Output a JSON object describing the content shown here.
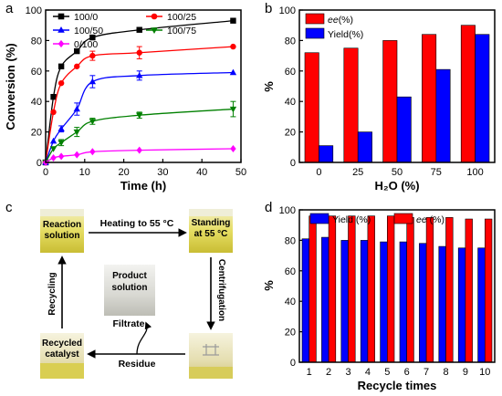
{
  "panel_letters": {
    "a": "a",
    "b": "b",
    "c": "c",
    "d": "d"
  },
  "colors": {
    "black": "#000000",
    "red": "#ff0000",
    "blue": "#0000ff",
    "green": "#008000",
    "magenta": "#ff00ff"
  },
  "chart_data": [
    {
      "panel": "a",
      "type": "line",
      "xlabel": "Time (h)",
      "ylabel": "Conversion (%)",
      "xlim": [
        0,
        50
      ],
      "ylim": [
        0,
        100
      ],
      "xticks": [
        0,
        10,
        20,
        30,
        40,
        50
      ],
      "yticks": [
        0,
        20,
        40,
        60,
        80,
        100
      ],
      "legend_placement": "top",
      "series": [
        {
          "name": "100/0",
          "color": "#000000",
          "marker": "square",
          "x": [
            0,
            2,
            4,
            8,
            12,
            24,
            48
          ],
          "y": [
            0,
            43,
            63,
            73,
            82,
            87,
            93
          ]
        },
        {
          "name": "100/25",
          "color": "#ff0000",
          "marker": "circle",
          "x": [
            0,
            2,
            4,
            8,
            12,
            24,
            48
          ],
          "y": [
            0,
            33,
            52,
            63,
            70,
            72,
            76
          ],
          "err": [
            0,
            0,
            0,
            0,
            3,
            4,
            0
          ]
        },
        {
          "name": "100/50",
          "color": "#0000ff",
          "marker": "triangle-up",
          "x": [
            0,
            2,
            4,
            8,
            12,
            24,
            48
          ],
          "y": [
            0,
            14,
            22,
            35,
            53,
            57,
            59
          ],
          "err": [
            0,
            0,
            2,
            4,
            4,
            3,
            0
          ]
        },
        {
          "name": "100/75",
          "color": "#008000",
          "marker": "triangle-down",
          "x": [
            0,
            2,
            4,
            8,
            12,
            24,
            48
          ],
          "y": [
            0,
            9,
            13,
            20,
            27,
            31,
            35
          ],
          "err": [
            0,
            0,
            2,
            3,
            2,
            2,
            5
          ]
        },
        {
          "name": "0/100",
          "color": "#ff00ff",
          "marker": "diamond",
          "x": [
            0,
            2,
            4,
            8,
            12,
            24,
            48
          ],
          "y": [
            0,
            3,
            4,
            5,
            7,
            8,
            9
          ]
        }
      ]
    },
    {
      "panel": "b",
      "type": "bar",
      "xlabel": "H₂O (%)",
      "ylabel": "%",
      "categories": [
        "0",
        "25",
        "50",
        "75",
        "100"
      ],
      "ylim": [
        0,
        100
      ],
      "yticks": [
        0,
        20,
        40,
        60,
        80,
        100
      ],
      "legend_placement": "top-left",
      "series": [
        {
          "name": "ee(%)",
          "color": "#ff0000",
          "values": [
            72,
            75,
            80,
            84,
            90
          ]
        },
        {
          "name": "Yield(%)",
          "color": "#0000ff",
          "values": [
            11,
            20,
            43,
            61,
            84
          ]
        }
      ]
    },
    {
      "panel": "d",
      "type": "bar",
      "xlabel": "Recycle times",
      "ylabel": "%",
      "categories": [
        "1",
        "2",
        "3",
        "4",
        "5",
        "6",
        "7",
        "8",
        "9",
        "10"
      ],
      "ylim": [
        0,
        100
      ],
      "yticks": [
        0,
        20,
        40,
        60,
        80,
        100
      ],
      "legend_placement": "top",
      "series": [
        {
          "name": "Yield (%)",
          "color": "#0000ff",
          "values": [
            81,
            82,
            80,
            80,
            79,
            79,
            78,
            76,
            75,
            75
          ]
        },
        {
          "name": "ee (%)",
          "color": "#ff0000",
          "values": [
            96,
            96,
            96,
            96,
            96,
            95,
            95,
            95,
            94,
            94
          ]
        }
      ]
    }
  ],
  "scheme": {
    "reaction_solution": [
      "Reaction",
      "solution"
    ],
    "standing": [
      "Standing",
      "at 55 °C"
    ],
    "product_solution": [
      "Product",
      "solution"
    ],
    "recycled_catalyst": [
      "Recycled",
      "catalyst"
    ],
    "heating": "Heating to 55 °C",
    "centrifugation": "Centrifugation",
    "filtrate": "Filtrate",
    "residue": "Residue",
    "recycling": "Recycling"
  }
}
